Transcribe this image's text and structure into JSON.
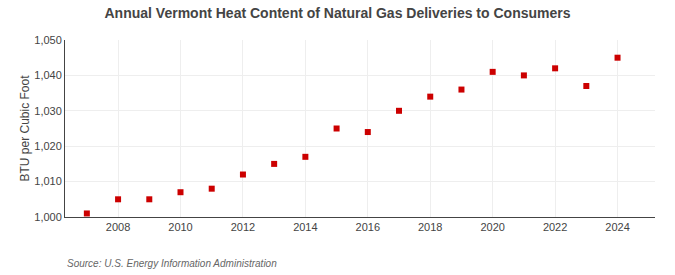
{
  "chart_data": {
    "type": "scatter",
    "title": "Annual Vermont Heat Content of Natural Gas Deliveries to Consumers",
    "ylabel": "BTU per Cubic Foot",
    "annotations": [
      "Source: U.S. Energy Information Administration"
    ],
    "x": [
      2007,
      2008,
      2009,
      2010,
      2011,
      2012,
      2013,
      2014,
      2015,
      2016,
      2017,
      2018,
      2019,
      2020,
      2021,
      2022,
      2023,
      2024
    ],
    "values": [
      1001,
      1005,
      1005,
      1007,
      1008,
      1012,
      1015,
      1017,
      1025,
      1024,
      1030,
      1034,
      1036,
      1041,
      1040,
      1042,
      1037,
      1045
    ],
    "color": "#cc0000",
    "marker": "square",
    "xlim": [
      2006.3,
      2025.2
    ],
    "xticks": [
      2008,
      2010,
      2012,
      2014,
      2016,
      2018,
      2020,
      2022,
      2024
    ],
    "ylim": [
      1000,
      1050
    ],
    "yticks": [
      {
        "value": 1000,
        "label": "1,000"
      },
      {
        "value": 1010,
        "label": "1,010"
      },
      {
        "value": 1020,
        "label": "1,020"
      },
      {
        "value": 1030,
        "label": "1,030"
      },
      {
        "value": 1040,
        "label": "1,040"
      },
      {
        "value": 1050,
        "label": "1,050"
      }
    ],
    "grid": true
  }
}
